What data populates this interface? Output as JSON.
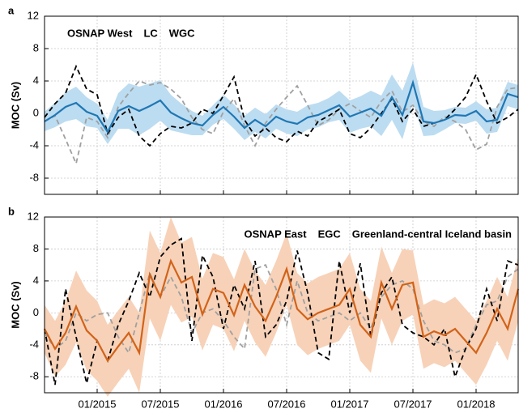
{
  "chart_data": [
    {
      "type": "line",
      "label": "a",
      "ylabel": "MOC (Sv)",
      "legend": "upper left",
      "grid": true,
      "xlim": [
        "08/2014",
        "05/2018"
      ],
      "ylim": [
        -10,
        12
      ],
      "yticks": [
        -8,
        -4,
        0,
        4,
        8,
        12
      ],
      "x": [
        "08/2014",
        "09/2014",
        "10/2014",
        "11/2014",
        "12/2014",
        "01/2015",
        "02/2015",
        "03/2015",
        "04/2015",
        "05/2015",
        "06/2015",
        "07/2015",
        "08/2015",
        "09/2015",
        "10/2015",
        "11/2015",
        "12/2015",
        "01/2016",
        "02/2016",
        "03/2016",
        "04/2016",
        "05/2016",
        "06/2016",
        "07/2016",
        "08/2016",
        "09/2016",
        "10/2016",
        "11/2016",
        "12/2016",
        "01/2017",
        "02/2017",
        "03/2017",
        "04/2017",
        "05/2017",
        "06/2017",
        "07/2017",
        "08/2017",
        "09/2017",
        "10/2017",
        "11/2017",
        "12/2017",
        "01/2018",
        "02/2018",
        "03/2018",
        "04/2018",
        "05/2018"
      ],
      "series": [
        {
          "name": "OSNAP West",
          "color": "#1f77b4",
          "band_color": "#bcdcf1",
          "dash": false,
          "values": [
            -1.0,
            -0.2,
            0.8,
            1.3,
            0.2,
            -0.3,
            -2.3,
            0.3,
            0.9,
            0.3,
            0.9,
            1.6,
            0.1,
            -0.6,
            -1.2,
            -1.5,
            -0.2,
            0.8,
            -0.4,
            -1.8,
            -0.8,
            -1.6,
            -0.4,
            -1.0,
            -1.3,
            -0.5,
            -0.2,
            0.4,
            1.0,
            -0.4,
            0.1,
            0.6,
            -0.3,
            2.0,
            -0.2,
            3.8,
            -1.0,
            -1.2,
            -0.8,
            -0.2,
            -0.3,
            0.3,
            -1.0,
            -0.8,
            2.4,
            2.0
          ],
          "errors": [
            1.2,
            1.5,
            1.8,
            2.0,
            1.8,
            1.5,
            1.5,
            2.2,
            2.8,
            3.0,
            2.8,
            2.5,
            2.2,
            1.8,
            1.5,
            1.2,
            1.2,
            1.5,
            1.5,
            1.5,
            1.5,
            1.5,
            1.5,
            1.5,
            1.5,
            1.5,
            1.5,
            1.5,
            1.8,
            2.0,
            2.0,
            2.2,
            2.5,
            2.8,
            3.0,
            2.5,
            1.8,
            1.5,
            1.2,
            1.0,
            1.0,
            1.2,
            1.5,
            1.5,
            1.5,
            1.5
          ]
        },
        {
          "name": "LC",
          "color": "#a0a0a0",
          "dash": true,
          "values": [
            -1.0,
            -0.3,
            -3.2,
            -6.2,
            -0.5,
            -1.0,
            -3.0,
            0.8,
            2.5,
            4.0,
            3.5,
            3.8,
            3.0,
            1.8,
            -0.5,
            -2.0,
            -2.5,
            0.2,
            1.8,
            -1.5,
            -4.0,
            -1.2,
            0.5,
            2.0,
            3.4,
            1.0,
            -1.5,
            -0.8,
            0.5,
            1.2,
            0.3,
            -0.5,
            1.5,
            2.8,
            0.2,
            1.0,
            -1.0,
            -1.6,
            -0.4,
            -1.0,
            -2.0,
            -4.5,
            -3.8,
            0.8,
            3.0,
            3.2
          ]
        },
        {
          "name": "WGC",
          "color": "#000000",
          "dash": true,
          "values": [
            -0.5,
            1.2,
            2.5,
            5.8,
            3.0,
            2.3,
            -2.5,
            -0.5,
            0.5,
            -2.8,
            -4.0,
            -2.5,
            -1.6,
            -1.8,
            -1.2,
            0.5,
            0.0,
            2.2,
            4.5,
            -0.8,
            -2.8,
            -1.8,
            -3.0,
            -3.5,
            -2.2,
            -2.8,
            -1.0,
            -0.3,
            0.5,
            -2.5,
            -3.0,
            -1.8,
            0.0,
            1.8,
            -1.0,
            0.5,
            -1.6,
            -1.2,
            -0.8,
            0.5,
            2.0,
            4.8,
            1.5,
            -1.2,
            -0.5,
            0.5
          ]
        }
      ]
    },
    {
      "type": "line",
      "label": "b",
      "ylabel": "MOC (Sv)",
      "legend": "upper right",
      "grid": true,
      "xlim": [
        "08/2014",
        "05/2018"
      ],
      "ylim": [
        -10,
        12
      ],
      "yticks": [
        -8,
        -4,
        0,
        4,
        8,
        12
      ],
      "xticks": [
        "01/2015",
        "07/2015",
        "01/2016",
        "07/2016",
        "01/2017",
        "07/2017",
        "01/2018"
      ],
      "x": [
        "08/2014",
        "09/2014",
        "10/2014",
        "11/2014",
        "12/2014",
        "01/2015",
        "02/2015",
        "03/2015",
        "04/2015",
        "05/2015",
        "06/2015",
        "07/2015",
        "08/2015",
        "09/2015",
        "10/2015",
        "11/2015",
        "12/2015",
        "01/2016",
        "02/2016",
        "03/2016",
        "04/2016",
        "05/2016",
        "06/2016",
        "07/2016",
        "08/2016",
        "09/2016",
        "10/2016",
        "11/2016",
        "12/2016",
        "01/2017",
        "02/2017",
        "03/2017",
        "04/2017",
        "05/2017",
        "06/2017",
        "07/2017",
        "08/2017",
        "09/2017",
        "10/2017",
        "11/2017",
        "12/2017",
        "01/2018",
        "02/2018",
        "03/2018",
        "04/2018",
        "05/2018"
      ],
      "series": [
        {
          "name": "OSNAP East",
          "color": "#d2631a",
          "band_color": "#f7d2b8",
          "dash": false,
          "values": [
            -2.0,
            -4.5,
            -2.5,
            0.8,
            -2.2,
            -3.5,
            -6.0,
            -4.2,
            -2.5,
            -5.0,
            4.8,
            2.0,
            6.5,
            3.8,
            4.5,
            -0.2,
            3.0,
            2.5,
            -0.3,
            3.5,
            0.8,
            -1.0,
            2.0,
            5.5,
            0.5,
            -0.8,
            0.0,
            0.5,
            1.0,
            3.0,
            -1.5,
            -3.0,
            3.8,
            0.5,
            3.5,
            3.8,
            -3.0,
            -2.3,
            -2.8,
            -2.0,
            -3.5,
            -5.0,
            -2.5,
            0.5,
            -2.0,
            3.0
          ],
          "errors": [
            3.0,
            3.5,
            4.0,
            4.5,
            5.0,
            5.0,
            4.5,
            4.5,
            4.5,
            5.0,
            5.5,
            5.5,
            5.5,
            5.0,
            5.0,
            4.5,
            4.5,
            4.5,
            4.5,
            4.5,
            4.5,
            4.5,
            4.5,
            4.5,
            4.5,
            4.5,
            4.5,
            4.5,
            4.5,
            4.5,
            4.5,
            4.5,
            4.5,
            4.5,
            4.5,
            4.0,
            4.0,
            4.0,
            4.0,
            4.0,
            4.0,
            4.0,
            4.0,
            4.0,
            4.0,
            4.0
          ]
        },
        {
          "name": "EGC",
          "color": "#a0a0a0",
          "dash": true,
          "values": [
            -2.5,
            -4.5,
            -3.5,
            0.0,
            -1.0,
            -0.2,
            0.0,
            -3.0,
            -5.0,
            0.0,
            5.0,
            2.0,
            4.5,
            2.0,
            -2.5,
            0.0,
            0.5,
            -1.0,
            -3.0,
            -4.5,
            5.5,
            6.0,
            3.0,
            -1.5,
            4.0,
            0.0,
            -1.0,
            -0.5,
            0.0,
            -1.0,
            0.0,
            -2.0,
            2.0,
            3.5,
            4.0,
            3.0,
            -1.0,
            -3.5,
            -4.0,
            -5.0,
            -4.5,
            -1.5,
            1.0,
            1.5,
            4.5,
            5.5
          ]
        },
        {
          "name": "Greenland-central Iceland basin",
          "color": "#000000",
          "dash": true,
          "values": [
            -2.0,
            -9.0,
            3.0,
            -3.0,
            -8.8,
            -3.5,
            -6.0,
            -1.5,
            1.5,
            5.0,
            2.0,
            7.0,
            8.5,
            9.3,
            -3.5,
            7.2,
            4.5,
            -2.0,
            3.5,
            0.5,
            6.5,
            -3.0,
            -1.5,
            1.5,
            7.8,
            2.5,
            -5.0,
            -5.8,
            6.5,
            0.0,
            6.2,
            -3.0,
            2.5,
            4.5,
            -1.5,
            -2.5,
            -3.0,
            -4.0,
            -2.0,
            -8.0,
            -4.5,
            -2.0,
            3.0,
            -1.0,
            6.5,
            6.0
          ]
        }
      ]
    }
  ]
}
